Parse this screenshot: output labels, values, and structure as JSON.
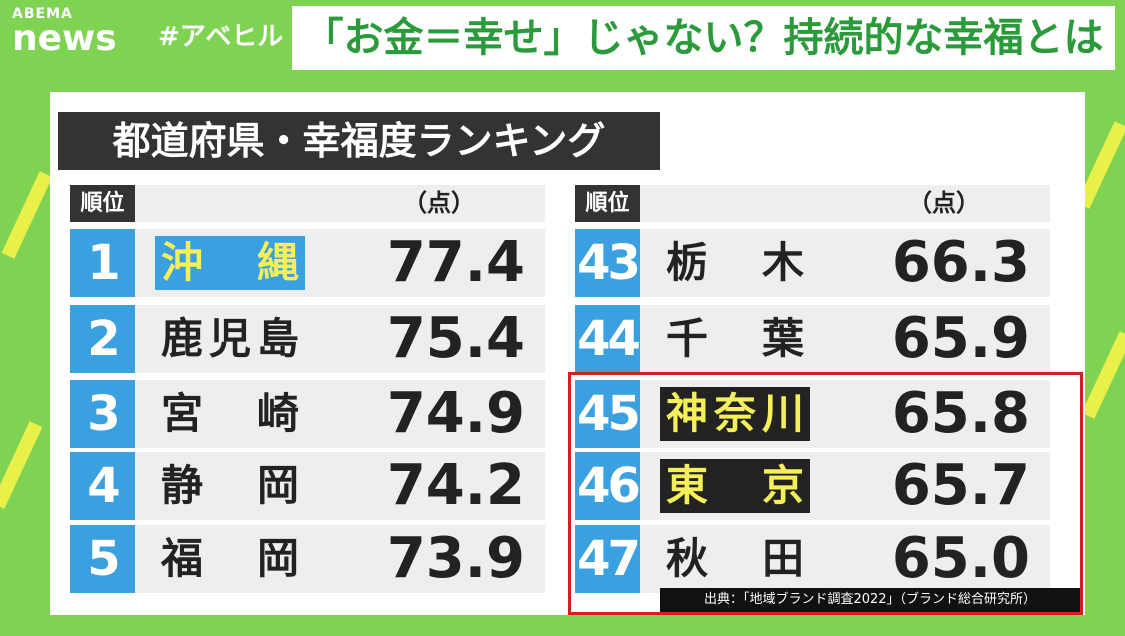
{
  "header": {
    "logo_top": "ABEMA",
    "logo_bottom": "news",
    "hashtag": "#アベヒル",
    "headline": "「お金＝幸せ」じゃない？持続的な幸福とは"
  },
  "panel": {
    "title": "都道府県・幸福度ランキング",
    "source": "出典：「地域ブランド調査2022」（ブランド総合研究所）",
    "tables": [
      {
        "columns": [
          "順位",
          "（点）"
        ],
        "rows": [
          [
            "1",
            "沖縄",
            "77.4"
          ],
          [
            "2",
            "鹿児島",
            "75.4"
          ],
          [
            "3",
            "宮崎",
            "74.9"
          ],
          [
            "4",
            "静岡",
            "74.2"
          ],
          [
            "5",
            "福岡",
            "73.9"
          ]
        ]
      },
      {
        "columns": [
          "順位",
          "（点）"
        ],
        "rows": [
          [
            "43",
            "栃木",
            "66.3"
          ],
          [
            "44",
            "千葉",
            "65.9"
          ],
          [
            "45",
            "神奈川",
            "65.8"
          ],
          [
            "46",
            "東京",
            "65.7"
          ],
          [
            "47",
            "秋田",
            "65.0"
          ]
        ]
      }
    ]
  }
}
